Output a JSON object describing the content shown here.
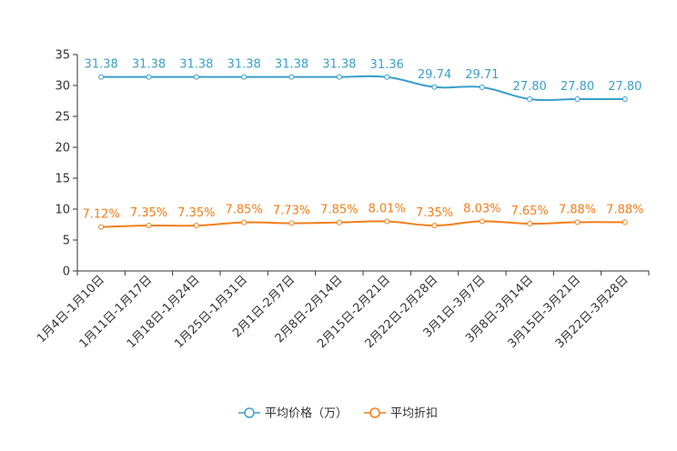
{
  "chart_data": {
    "type": "line",
    "title": "",
    "xlabel": "",
    "ylabel": "",
    "ylim": [
      0,
      35
    ],
    "yticks": [
      0,
      5,
      10,
      15,
      20,
      25,
      30,
      35
    ],
    "grid": false,
    "legend_position": "bottom-center",
    "categories": [
      "1月4日-1月10日",
      "1月11日-1月17日",
      "1月18日-1月24日",
      "1月25日-1月31日",
      "2月1日-2月7日",
      "2月8日-2月14日",
      "2月15日-2月21日",
      "2月22日-2月28日",
      "3月1日-3月7日",
      "3月8日-3月14日",
      "3月15日-3月21日",
      "3月22日-3月28日"
    ],
    "series": [
      {
        "name": "平均价格（万）",
        "color": "#3a9fcc",
        "values": [
          31.38,
          31.38,
          31.38,
          31.38,
          31.38,
          31.38,
          31.36,
          29.74,
          29.71,
          27.8,
          27.8,
          27.8
        ],
        "labels": [
          "31.38",
          "31.38",
          "31.38",
          "31.38",
          "31.38",
          "31.38",
          "31.36",
          "29.74",
          "29.71",
          "27.80",
          "27.80",
          "27.80"
        ]
      },
      {
        "name": "平均折扣",
        "color": "#f07f1b",
        "values": [
          7.12,
          7.35,
          7.35,
          7.85,
          7.73,
          7.85,
          8.01,
          7.35,
          8.03,
          7.65,
          7.88,
          7.88
        ],
        "labels": [
          "7.12%",
          "7.35%",
          "7.35%",
          "7.85%",
          "7.73%",
          "7.85%",
          "8.01%",
          "7.35%",
          "8.03%",
          "7.65%",
          "7.88%",
          "7.88%"
        ]
      }
    ]
  }
}
